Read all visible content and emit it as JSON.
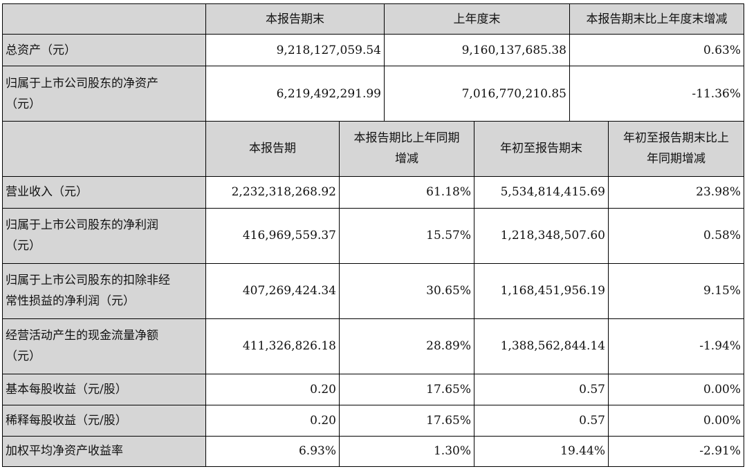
{
  "top_table": {
    "headers": [
      "本报告期末",
      "上年度末",
      "本报告期末比上年度末增减"
    ],
    "rows": [
      {
        "label": "总资产（元）",
        "values": [
          "9,218,127,059.54",
          "9,160,137,685.38",
          "0.63%"
        ]
      },
      {
        "label_lines": [
          "归属于上市公司股东的净资产",
          "（元）"
        ],
        "values": [
          "6,219,492,291.99",
          "7,016,770,210.85",
          "-11.36%"
        ]
      }
    ]
  },
  "bottom_table": {
    "headers": [
      {
        "lines": [
          "本报告期"
        ]
      },
      {
        "lines": [
          "本报告期比上年同期",
          "增减"
        ]
      },
      {
        "lines": [
          "年初至报告期末"
        ]
      },
      {
        "lines": [
          "年初至报告期末比上",
          "年同期增减"
        ]
      }
    ],
    "rows": [
      {
        "label_lines": [
          "营业收入（元）"
        ],
        "values": [
          "2,232,318,268.92",
          "61.18%",
          "5,534,814,415.69",
          "23.98%"
        ]
      },
      {
        "label_lines": [
          "归属于上市公司股东的净利润",
          "（元）"
        ],
        "values": [
          "416,969,559.37",
          "15.57%",
          "1,218,348,507.60",
          "0.58%"
        ]
      },
      {
        "label_lines": [
          "归属于上市公司股东的扣除非经",
          "常性损益的净利润（元）"
        ],
        "values": [
          "407,269,424.34",
          "30.65%",
          "1,168,451,956.19",
          "9.15%"
        ]
      },
      {
        "label_lines": [
          "经营活动产生的现金流量净额",
          "（元）"
        ],
        "values": [
          "411,326,826.18",
          "28.89%",
          "1,388,562,844.14",
          "-1.94%"
        ]
      },
      {
        "label_lines": [
          "基本每股收益（元/股）"
        ],
        "values": [
          "0.20",
          "17.65%",
          "0.57",
          "0.00%"
        ]
      },
      {
        "label_lines": [
          "稀释每股收益（元/股）"
        ],
        "values": [
          "0.20",
          "17.65%",
          "0.57",
          "0.00%"
        ]
      },
      {
        "label_lines": [
          "加权平均净资产收益率"
        ],
        "values": [
          "6.93%",
          "1.30%",
          "19.44%",
          "-2.91%"
        ]
      }
    ]
  }
}
